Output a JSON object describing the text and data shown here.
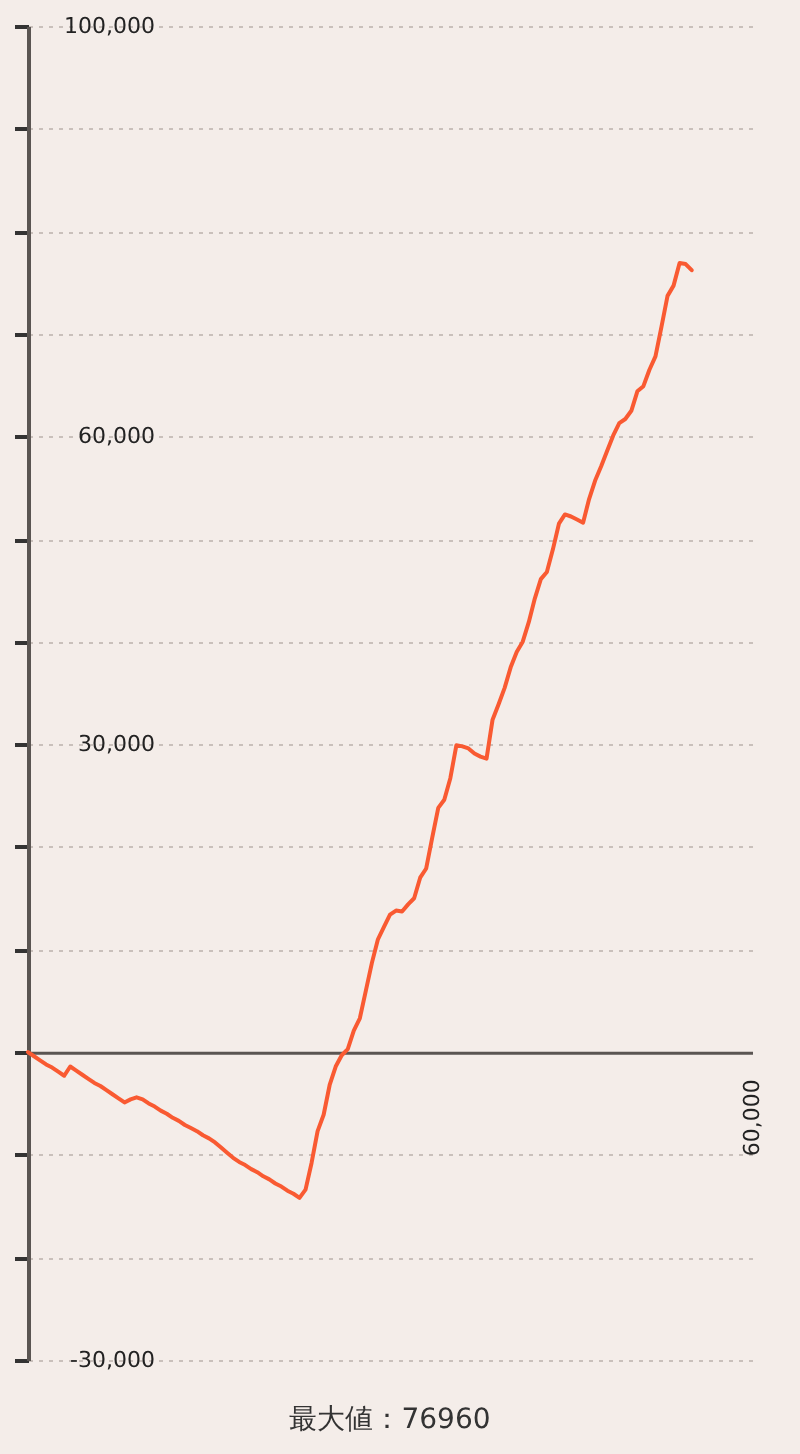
{
  "chart_data": {
    "type": "line",
    "annotations": [
      "最大値：76960"
    ],
    "categories": [
      null,
      null,
      null,
      null,
      null,
      null,
      null,
      null,
      null,
      null,
      null,
      null,
      null,
      null,
      null,
      null,
      null,
      null,
      null,
      null,
      null,
      null,
      null,
      null,
      null,
      null,
      null,
      null,
      null,
      null,
      null,
      null,
      null,
      null,
      null,
      null,
      null,
      null,
      null,
      null,
      null,
      null,
      null,
      null,
      null,
      null,
      null,
      null,
      null,
      null,
      null,
      null,
      null,
      null,
      null,
      null,
      null,
      null,
      null,
      null,
      null,
      null,
      null,
      null,
      null,
      null,
      null,
      null,
      null,
      null,
      null,
      null,
      null,
      null,
      null,
      null,
      null,
      null,
      null,
      null,
      null,
      null,
      null,
      null,
      null,
      null,
      null,
      null,
      null,
      null,
      null,
      null,
      null,
      null,
      null,
      null,
      null,
      null,
      null,
      null,
      null,
      null,
      null,
      null,
      null,
      null,
      null,
      null,
      null,
      null,
      null,
      null,
      null,
      null,
      null,
      null,
      null,
      null,
      null,
      null,
      "60,000"
    ],
    "series": [
      {
        "color": "#f95a32",
        "values": [
          0,
          -400,
          -800,
          -1200,
          -1500,
          -1900,
          -2300,
          -1400,
          -1800,
          -2200,
          -2600,
          -3000,
          -3300,
          -3700,
          -4100,
          -4500,
          -4900,
          -4600,
          -4400,
          -4600,
          -5000,
          -5300,
          -5700,
          -6000,
          -6400,
          -6700,
          -7100,
          -7400,
          -7700,
          -8100,
          -8400,
          -8800,
          -9300,
          -9800,
          -10300,
          -10700,
          -11000,
          -11400,
          -11700,
          -12100,
          -12400,
          -12800,
          -13100,
          -13500,
          -13800,
          -14200,
          -13400,
          -10800,
          -7700,
          -6100,
          -3200,
          -1400,
          -300,
          300,
          2100,
          3300,
          6000,
          8700,
          11000,
          12200,
          13400,
          13800,
          13700,
          14400,
          15000,
          17000,
          17900,
          20900,
          23800,
          24600,
          26700,
          29900,
          29800,
          29600,
          29100,
          28800,
          28600,
          32400,
          33900,
          35500,
          37500,
          39000,
          40000,
          41900,
          44200,
          46100,
          46800,
          49000,
          51500,
          52400,
          52200,
          51900,
          51600,
          53900,
          55700,
          57100,
          58600,
          60100,
          61300,
          61700,
          62500,
          64400,
          64900,
          66500,
          67800,
          70700,
          73700,
          74700,
          76900,
          76800,
          76200,
          null,
          null,
          null,
          null,
          null,
          null,
          null,
          null,
          null,
          null
        ]
      }
    ],
    "ylim": [
      -30000,
      100000
    ],
    "yticks": [
      {
        "value": -30000,
        "label": "-30,000"
      },
      {
        "value": -20000,
        "label": null
      },
      {
        "value": -10000,
        "label": null
      },
      {
        "value": 0,
        "label": null
      },
      {
        "value": 10000,
        "label": null
      },
      {
        "value": 20000,
        "label": null
      },
      {
        "value": 30000,
        "label": "30,000"
      },
      {
        "value": 40000,
        "label": null
      },
      {
        "value": 50000,
        "label": null
      },
      {
        "value": 60000,
        "label": "60,000"
      },
      {
        "value": 70000,
        "label": null
      },
      {
        "value": 80000,
        "label": null
      },
      {
        "value": 90000,
        "label": null
      },
      {
        "value": 100000,
        "label": "100,000"
      }
    ],
    "grid": "y"
  }
}
